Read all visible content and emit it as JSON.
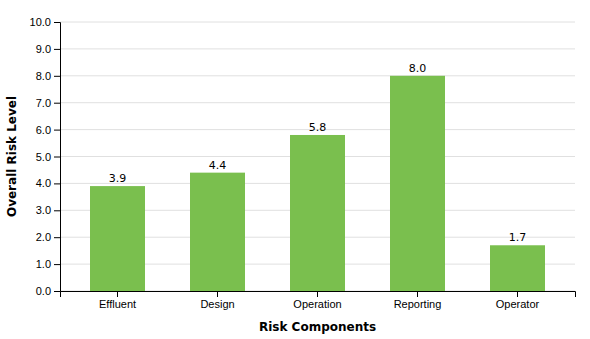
{
  "chart_data": {
    "type": "bar",
    "categories": [
      "Effluent",
      "Design",
      "Operation",
      "Reporting",
      "Operator"
    ],
    "values": [
      3.9,
      4.4,
      5.8,
      8.0,
      1.7
    ],
    "value_labels": [
      "3.9",
      "4.4",
      "5.8",
      "8.0",
      "1.7"
    ],
    "color": "#7abf4e",
    "xlabel": "Risk Components",
    "ylabel": "Overall Risk Level",
    "ylim": [
      0,
      10.0
    ],
    "yticks": [
      {
        "value": 0.0,
        "label": "0.0"
      },
      {
        "value": 1.0,
        "label": "1.0"
      },
      {
        "value": 2.0,
        "label": "2.0"
      },
      {
        "value": 3.0,
        "label": "3.0"
      },
      {
        "value": 4.0,
        "label": "4.0"
      },
      {
        "value": 5.0,
        "label": "5.0"
      },
      {
        "value": 6.0,
        "label": "6.0"
      },
      {
        "value": 7.0,
        "label": "7.0"
      },
      {
        "value": 8.0,
        "label": "8.0"
      },
      {
        "value": 9.0,
        "label": "9.0"
      },
      {
        "value": 10.0,
        "label": "10.0"
      }
    ],
    "grid": true,
    "data_labels": true
  }
}
